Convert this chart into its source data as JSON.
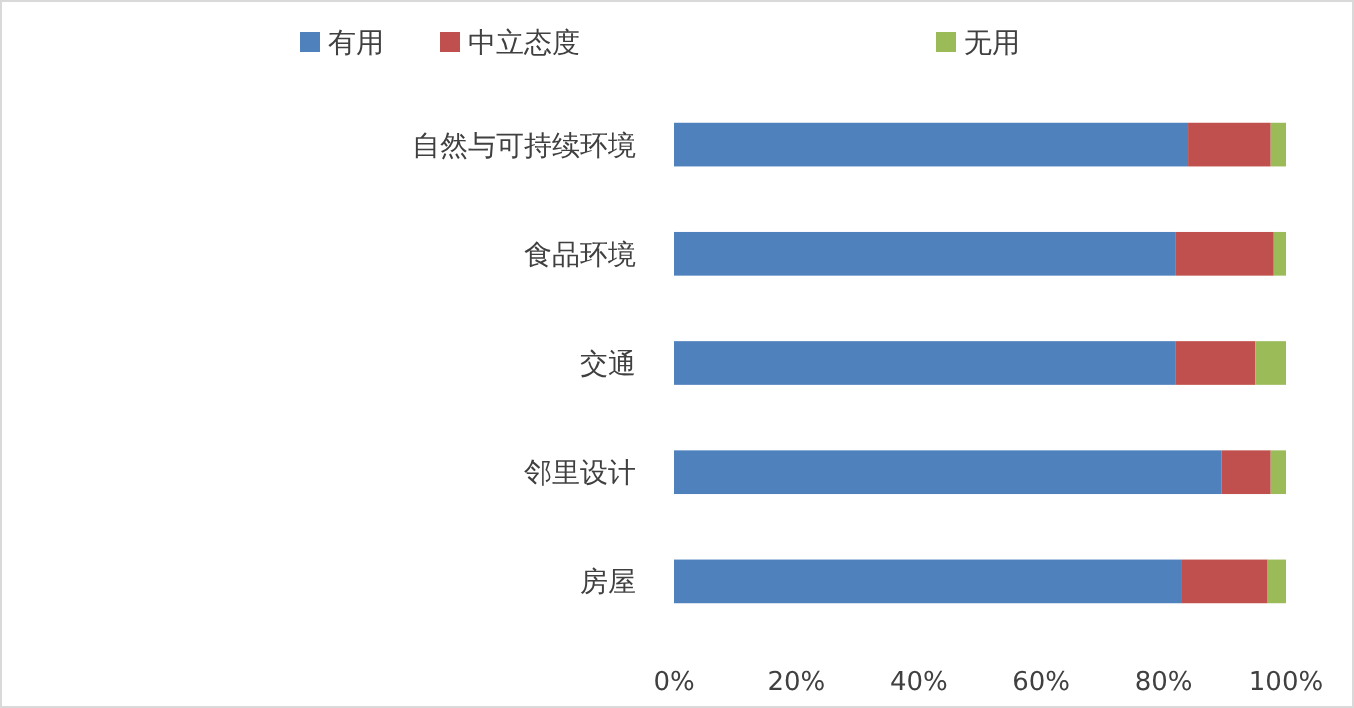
{
  "chart_data": {
    "type": "bar",
    "orientation": "horizontal",
    "stacked": true,
    "legend": "top",
    "grid": false,
    "categories": [
      "自然与可持续环境",
      "食品环境",
      "交通",
      "邻里设计",
      "房屋"
    ],
    "series": [
      {
        "name": "有用",
        "color": "#4f81bd",
        "values": [
          84,
          82,
          82,
          89.5,
          83
        ]
      },
      {
        "name": "中立态度",
        "color": "#c0504d",
        "values": [
          13.5,
          16,
          13,
          8,
          14
        ]
      },
      {
        "name": "无用",
        "color": "#9bbb59",
        "values": [
          2.5,
          2,
          5,
          2.5,
          3
        ]
      }
    ],
    "xlim": [
      0,
      100
    ],
    "xticks": [
      {
        "value": 0,
        "label": "0%"
      },
      {
        "value": 20,
        "label": "20%"
      },
      {
        "value": 40,
        "label": "40%"
      },
      {
        "value": 60,
        "label": "60%"
      },
      {
        "value": 80,
        "label": "80%"
      },
      {
        "value": 100,
        "label": "100%"
      }
    ]
  }
}
